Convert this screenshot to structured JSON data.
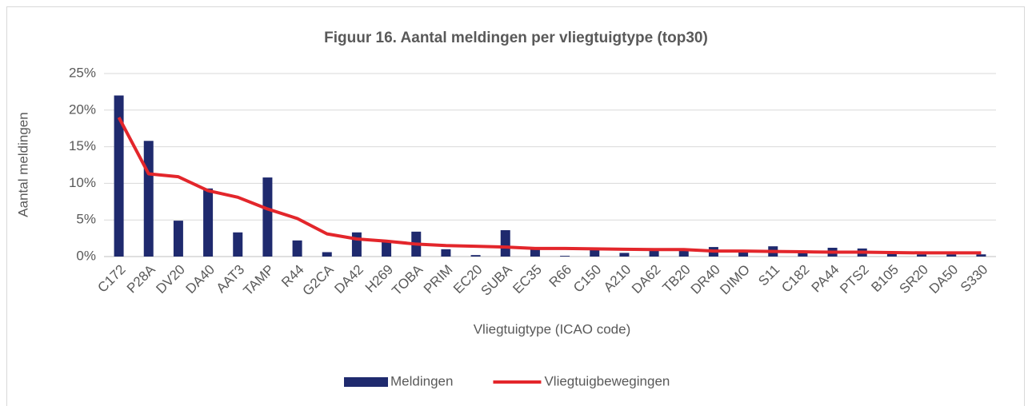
{
  "chart_data": {
    "type": "bar_line",
    "title": "Figuur 16. Aantal meldingen per vliegtuigtype (top30)",
    "x_label": "Vliegtuigtype (ICAO code)",
    "y_label": "Aantal meldingen",
    "categories": [
      "C172",
      "P28A",
      "DV20",
      "DA40",
      "AAT3",
      "TAMP",
      "R44",
      "G2CA",
      "DA42",
      "H269",
      "TOBA",
      "PRIM",
      "EC20",
      "SUBA",
      "EC35",
      "R66",
      "C150",
      "A210",
      "DA62",
      "TB20",
      "DR40",
      "DIMO",
      "S11",
      "C182",
      "PA44",
      "PTS2",
      "B105",
      "SR20",
      "DA50",
      "S330"
    ],
    "series": [
      {
        "name": "Meldingen",
        "type": "bar",
        "color": "#1f2a6e",
        "values": [
          22,
          15.8,
          4.9,
          9.3,
          3.3,
          10.8,
          2.2,
          0.6,
          3.3,
          2.1,
          3.4,
          1.0,
          0.2,
          3.6,
          1.0,
          0.1,
          1.0,
          0.5,
          1.0,
          1.0,
          1.3,
          0.6,
          1.4,
          0.5,
          1.2,
          1.1,
          0.4,
          0.3,
          0.3,
          0.3
        ]
      },
      {
        "name": "Vliegtuigbewegingen",
        "type": "line",
        "color": "#e3262b",
        "values": [
          19.0,
          11.3,
          10.9,
          9.0,
          8.1,
          6.5,
          5.2,
          3.1,
          2.4,
          2.1,
          1.7,
          1.5,
          1.4,
          1.3,
          1.1,
          1.1,
          1.05,
          1.0,
          0.95,
          0.95,
          0.75,
          0.75,
          0.7,
          0.65,
          0.6,
          0.6,
          0.55,
          0.5,
          0.5,
          0.5
        ]
      }
    ],
    "ylim": [
      0,
      25
    ],
    "yticks": [
      {
        "value": 0,
        "label": "0%"
      },
      {
        "value": 5,
        "label": "5%"
      },
      {
        "value": 10,
        "label": "10%"
      },
      {
        "value": 15,
        "label": "15%"
      },
      {
        "value": 20,
        "label": "20%"
      },
      {
        "value": 25,
        "label": "25%"
      }
    ],
    "grid": true,
    "legend": "bottom"
  }
}
